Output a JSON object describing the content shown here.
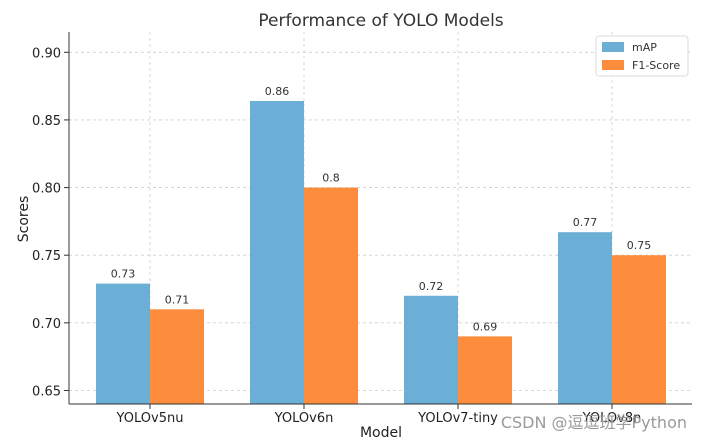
{
  "chart_data": {
    "type": "bar",
    "title": "Performance of YOLO Models",
    "xlabel": "Model",
    "ylabel": "Scores",
    "categories": [
      "YOLOv5nu",
      "YOLOv6n",
      "YOLOv7-tiny",
      "YOLOv8n"
    ],
    "series": [
      {
        "name": "mAP",
        "values": [
          0.729,
          0.864,
          0.72,
          0.767
        ],
        "labels": [
          "0.73",
          "0.86",
          "0.72",
          "0.77"
        ],
        "color": "#6baed6"
      },
      {
        "name": "F1-Score",
        "values": [
          0.71,
          0.8,
          0.69,
          0.75
        ],
        "labels": [
          "0.71",
          "0.8",
          "0.69",
          "0.75"
        ],
        "color": "#fd8d3c"
      }
    ],
    "ylim": [
      0.64,
      0.915
    ],
    "yticks": [
      "0.65",
      "0.70",
      "0.75",
      "0.80",
      "0.85",
      "0.90"
    ],
    "grid": true,
    "legend_position": "top-right"
  },
  "watermark": "CSDN @逗逗班学Python"
}
